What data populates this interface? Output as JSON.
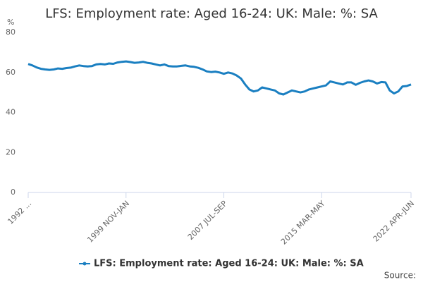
{
  "chart_data": {
    "type": "line",
    "title": "LFS: Employment rate: Aged 16-24: UK: Male: %: SA",
    "y_label": "%",
    "source": "Source:",
    "categories": [
      "1992 ...",
      null,
      null,
      null,
      null,
      null,
      null,
      null,
      null,
      null,
      null,
      null,
      null,
      null,
      null,
      null,
      null,
      null,
      null,
      null,
      null,
      null,
      null,
      "1999 NOV-JAN",
      null,
      null,
      null,
      null,
      null,
      null,
      null,
      null,
      null,
      null,
      null,
      null,
      null,
      null,
      null,
      null,
      null,
      null,
      null,
      null,
      null,
      null,
      "2007 JUL-SEP",
      null,
      null,
      null,
      null,
      null,
      null,
      null,
      null,
      null,
      null,
      null,
      null,
      null,
      null,
      null,
      null,
      null,
      null,
      null,
      null,
      null,
      null,
      "2015 MAR-MAY",
      null,
      null,
      null,
      null,
      null,
      null,
      null,
      null,
      null,
      null,
      null,
      null,
      null,
      null,
      null,
      null,
      null,
      null,
      null,
      null,
      "2022 APR-JUN"
    ],
    "series": [
      {
        "name": "LFS: Employment rate: Aged 16-24: UK: Male: %: SA",
        "color": "#1a7fc1",
        "values": [
          64.2,
          63.5,
          62.5,
          61.8,
          61.5,
          61.3,
          61.5,
          62,
          61.8,
          62.2,
          62.4,
          63,
          63.5,
          63.2,
          63,
          63.2,
          64,
          64.2,
          64,
          64.5,
          64.3,
          65,
          65.3,
          65.5,
          65.2,
          64.8,
          65,
          65.3,
          64.8,
          64.5,
          64,
          63.5,
          64,
          63.2,
          63,
          63,
          63.3,
          63.5,
          63,
          62.8,
          62.3,
          61.5,
          60.5,
          60.2,
          60.4,
          60,
          59.3,
          60,
          59.5,
          58.5,
          57,
          54,
          51.5,
          50.5,
          51,
          52.5,
          52,
          51.5,
          51,
          49.5,
          49,
          50,
          51,
          50.5,
          50,
          50.5,
          51.5,
          52,
          52.5,
          53,
          53.5,
          55.5,
          55,
          54.5,
          54,
          55,
          55,
          53.8,
          54.8,
          55.5,
          56,
          55.5,
          54.5,
          55.2,
          55,
          51,
          49.5,
          50.5,
          53,
          53.2,
          54
        ]
      }
    ],
    "ylim": [
      0,
      80
    ],
    "yticks": [
      0,
      20,
      40,
      60,
      80
    ],
    "grid": false
  }
}
